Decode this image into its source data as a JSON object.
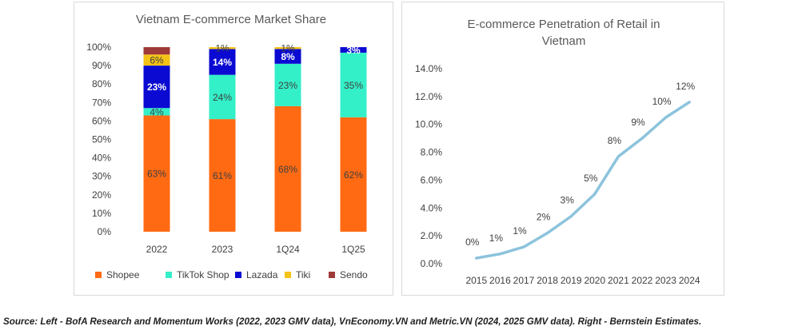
{
  "source_note": "Source: Left - BofA Research and Momentum Works (2022, 2023 GMV data), VnEconomy.VN and Metric.VN (2024, 2025 GMV data). Right - Bernstein Estimates.",
  "chart_data": [
    {
      "type": "bar",
      "stacked": true,
      "title": "Vietnam E-commerce Market Share",
      "categories": [
        "2022",
        "2023",
        "1Q24",
        "1Q25"
      ],
      "y_ticks": [
        "0%",
        "10%",
        "20%",
        "30%",
        "40%",
        "50%",
        "60%",
        "70%",
        "80%",
        "90%",
        "100%"
      ],
      "ylim": [
        0,
        100
      ],
      "grid": false,
      "legend_position": "bottom",
      "series": [
        {
          "name": "Shopee",
          "color": "#ff6a13",
          "label_color": "#404040",
          "bold": false,
          "values": [
            63,
            61,
            68,
            62
          ],
          "labels": [
            "63%",
            "61%",
            "68%",
            "62%"
          ]
        },
        {
          "name": "TikTok Shop",
          "color": "#33f0c8",
          "label_color": "#404040",
          "bold": false,
          "values": [
            4,
            24,
            23,
            35
          ],
          "labels": [
            "4%",
            "24%",
            "23%",
            "35%"
          ]
        },
        {
          "name": "Lazada",
          "color": "#0a0ad2",
          "label_color": "#ffffff",
          "bold": true,
          "values": [
            23,
            14,
            8,
            3
          ],
          "labels": [
            "23%",
            "14%",
            "8%",
            "3%"
          ]
        },
        {
          "name": "Tiki",
          "color": "#f5c316",
          "label_color": "#404040",
          "bold": false,
          "values": [
            6,
            1,
            1,
            0
          ],
          "labels": [
            "6%",
            "1%",
            "1%",
            ""
          ]
        },
        {
          "name": "Sendo",
          "color": "#9e3a38",
          "label_color": "#404040",
          "bold": false,
          "values": [
            4,
            0,
            0,
            0
          ],
          "labels": [
            "",
            "",
            "",
            ""
          ]
        }
      ]
    },
    {
      "type": "line",
      "title_lines": [
        "E-commerce Penetration of Retail in",
        "Vietnam"
      ],
      "x": [
        "2015",
        "2016",
        "2017",
        "2018",
        "2019",
        "2020",
        "2021",
        "2022",
        "2023",
        "2024"
      ],
      "values": [
        0.4,
        0.7,
        1.2,
        2.2,
        3.4,
        5.0,
        7.7,
        9.0,
        10.5,
        11.6
      ],
      "labels": [
        "0%",
        "1%",
        "1%",
        "2%",
        "3%",
        "5%",
        "8%",
        "9%",
        "10%",
        "12%"
      ],
      "y_ticks": [
        "0.0%",
        "2.0%",
        "4.0%",
        "6.0%",
        "8.0%",
        "10.0%",
        "12.0%",
        "14.0%"
      ],
      "ylim": [
        0,
        14
      ],
      "grid": false,
      "line_color": "#8cc3dc"
    }
  ]
}
